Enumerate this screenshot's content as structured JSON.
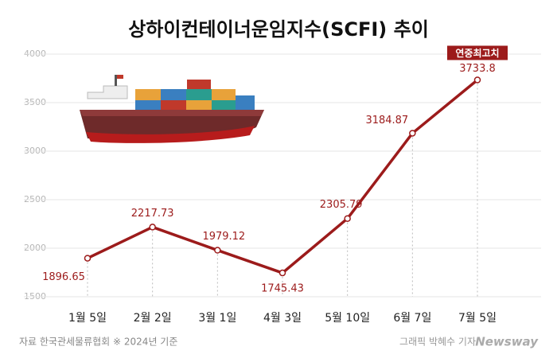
{
  "chart_data": {
    "type": "line",
    "title": "상하이컨테이너운임지수(SCFI) 추이",
    "categories": [
      "1월 5일",
      "2월 2일",
      "3월 1일",
      "4월 3일",
      "5월 10일",
      "6월 7일",
      "7월 5일"
    ],
    "series": [
      {
        "name": "SCFI",
        "color": "#9c1b1b",
        "values": [
          1896.65,
          2217.73,
          1979.12,
          1745.43,
          2305.79,
          3184.87,
          3733.8
        ]
      }
    ],
    "ylim": [
      1500,
      4000
    ],
    "yticks": [
      1500,
      2000,
      2500,
      3000,
      3500,
      4000
    ],
    "grid": true,
    "annotation": "연중최고치",
    "source": "자료 한국관세물류협회 ※ 2024년 기준",
    "credit": "그래픽 박혜수 기자",
    "brand": "Newsway"
  }
}
